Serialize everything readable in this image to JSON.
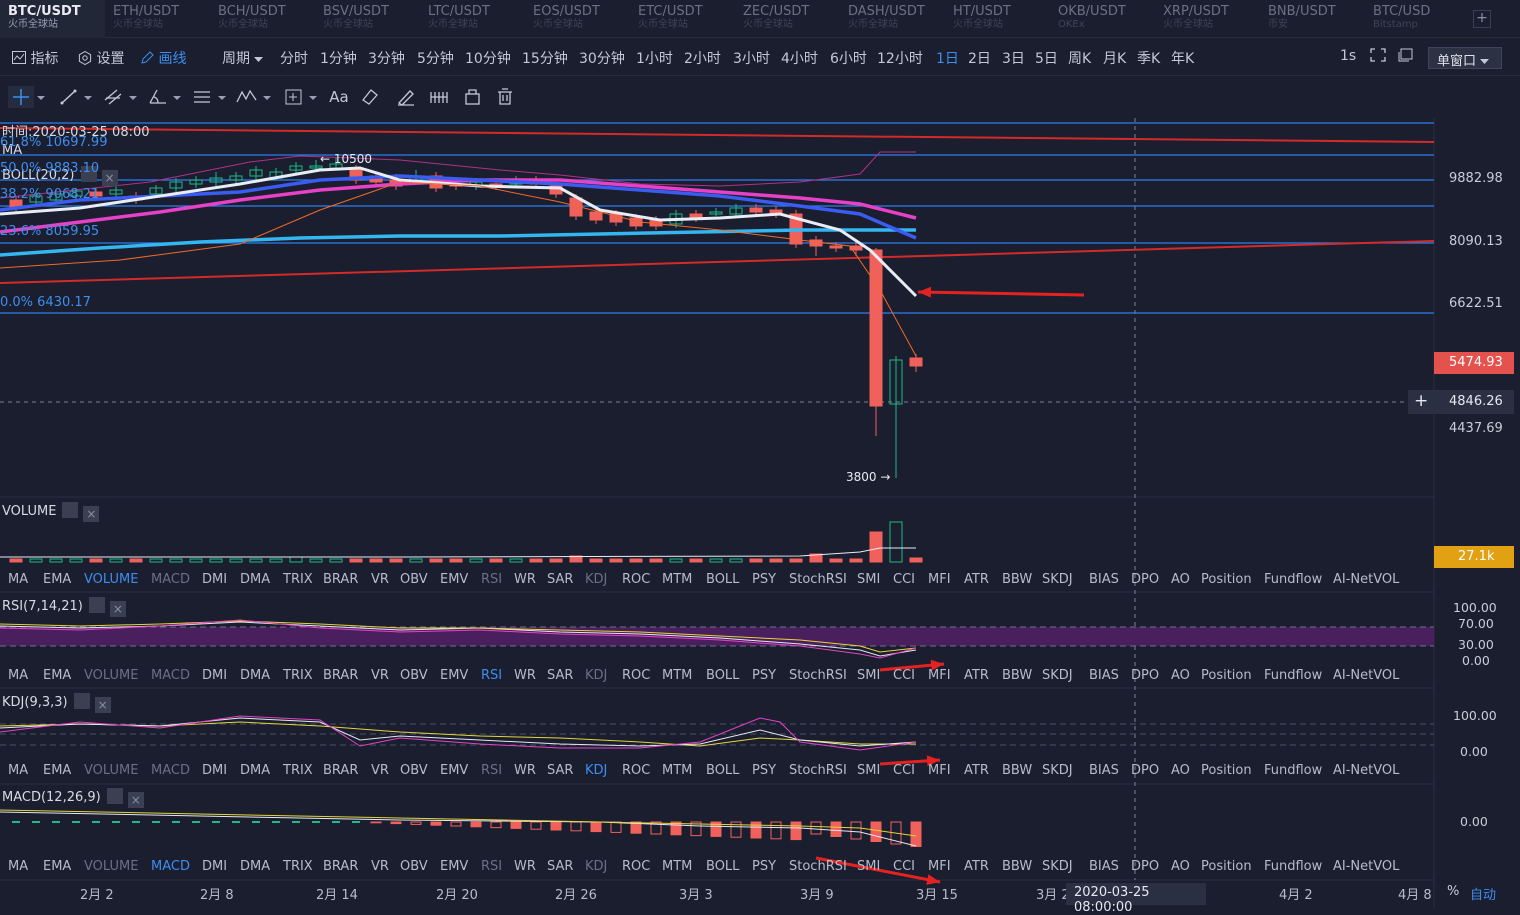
{
  "tabs": [
    {
      "pair": "BTC/USDT",
      "ex": "火币全球站"
    },
    {
      "pair": "ETH/USDT",
      "ex": "火币全球站"
    },
    {
      "pair": "BCH/USDT",
      "ex": "火币全球站"
    },
    {
      "pair": "BSV/USDT",
      "ex": "火币全球站"
    },
    {
      "pair": "LTC/USDT",
      "ex": "火币全球站"
    },
    {
      "pair": "EOS/USDT",
      "ex": "火币全球站"
    },
    {
      "pair": "ETC/USDT",
      "ex": "火币全球站"
    },
    {
      "pair": "ZEC/USDT",
      "ex": "火币全球站"
    },
    {
      "pair": "DASH/USDT",
      "ex": "火币全球站"
    },
    {
      "pair": "HT/USDT",
      "ex": "火币全球站"
    },
    {
      "pair": "OKB/USDT",
      "ex": "OKEx"
    },
    {
      "pair": "XRP/USDT",
      "ex": "火币全球站"
    },
    {
      "pair": "BNB/USDT",
      "ex": "币安"
    },
    {
      "pair": "BTC/USD",
      "ex": "Bitstamp"
    }
  ],
  "toolbar": {
    "indicator": "指标",
    "settings": "设置",
    "draw": "画线",
    "period": "周期",
    "periods": [
      "分时",
      "1分钟",
      "3分钟",
      "5分钟",
      "10分钟",
      "15分钟",
      "30分钟",
      "1小时",
      "2小时",
      "3小时",
      "4小时",
      "6小时",
      "12小时",
      "1日",
      "2日",
      "3日",
      "5日",
      "周K",
      "月K",
      "季K",
      "年K"
    ],
    "selected_period": "1日",
    "interval": "1s",
    "window": "单窗口"
  },
  "draw_tools": {
    "text_tool": "Aa"
  },
  "main": {
    "time": "时间:2020-03-25 08:00",
    "ma": "MA",
    "boll": "BOLL(20,2)",
    "fib": [
      "61.8% 10697.99",
      "50.0% 9883.10",
      "38.2% 9068.21",
      "23.6% 8059.95",
      "0.0% 6430.17"
    ],
    "high_marker": "← 10500",
    "low_marker": "3800 →",
    "price_axis": [
      "9882.98",
      "8090.13",
      "6622.51",
      "4437.69"
    ],
    "current_price": "5474.93",
    "cursor_price": "4846.26"
  },
  "volume": {
    "title": "VOLUME",
    "value": "27.1k"
  },
  "indicators": [
    "MA",
    "EMA",
    "VOLUME",
    "MACD",
    "DMI",
    "DMA",
    "TRIX",
    "BRAR",
    "VR",
    "OBV",
    "EMV",
    "RSI",
    "WR",
    "SAR",
    "KDJ",
    "ROC",
    "MTM",
    "BOLL",
    "PSY",
    "StochRSI",
    "SMI",
    "CCI",
    "MFI",
    "ATR",
    "BBW",
    "SKDJ",
    "BIAS",
    "DPO",
    "AO",
    "Position",
    "Fundflow",
    "AI-NetVOL"
  ],
  "rsi": {
    "title": "RSI(7,14,21)",
    "axis": [
      "100.00",
      "70.00",
      "30.00",
      "0.00"
    ]
  },
  "kdj": {
    "title": "KDJ(9,3,3)",
    "axis": [
      "100.00",
      "0.00"
    ]
  },
  "macd": {
    "title": "MACD(12,26,9)",
    "axis": [
      "0.00"
    ]
  },
  "dates": [
    "2月 2",
    "2月 8",
    "2月 14",
    "2月 20",
    "2月 26",
    "3月 3",
    "3月 9",
    "3月 15",
    "3月 2",
    "4月 2",
    "4月 8"
  ],
  "cursor_date": "2020-03-25 08:00:00",
  "bottom": {
    "percent": "%",
    "auto": "自动"
  },
  "colors": {
    "up": "#1fb98b",
    "down": "#f0615c",
    "accent": "#3d8ef0"
  }
}
